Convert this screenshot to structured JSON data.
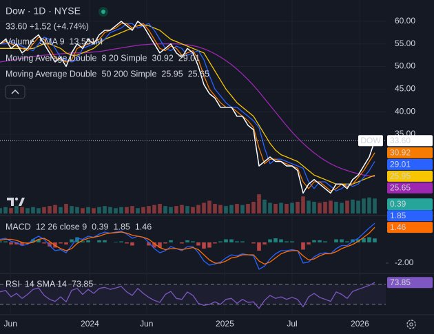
{
  "chart_data": [
    {
      "type": "line",
      "title": "Dow · 1D · NYSE",
      "subtitle": "33.60 +1.52 (+4.74%)",
      "x": [
        0,
        1,
        2,
        3,
        4,
        5,
        6,
        7,
        8,
        9,
        10,
        11,
        12,
        13,
        14,
        15,
        16,
        17,
        18,
        19,
        20,
        21,
        22,
        23,
        24,
        25,
        26,
        27,
        28,
        29,
        30,
        31,
        32,
        33,
        34,
        35,
        36,
        37,
        38,
        39,
        40,
        41,
        42,
        43,
        44,
        45,
        46,
        47,
        48,
        49,
        50,
        51,
        52,
        53,
        54,
        55,
        56,
        57,
        58,
        59,
        60,
        61,
        62,
        63,
        64,
        65,
        66,
        67,
        68
      ],
      "xlim": [
        0,
        70
      ],
      "xticks": [
        {
          "value": 1.9,
          "label": "Jun"
        },
        {
          "value": 16.3,
          "label": "2024"
        },
        {
          "value": 26.6,
          "label": "Jun"
        },
        {
          "value": 40.8,
          "label": "2025"
        },
        {
          "value": 53,
          "label": "Jul"
        },
        {
          "value": 65.3,
          "label": "2026"
        }
      ],
      "ylim": [
        17.5,
        64.7
      ],
      "yticks": [
        {
          "value": 35,
          "label": "35.00"
        },
        {
          "value": 40,
          "label": "40.00"
        },
        {
          "value": 45,
          "label": "45.00"
        },
        {
          "value": 50,
          "label": "50.00"
        },
        {
          "value": 55,
          "label": "55.00"
        },
        {
          "value": 60,
          "label": "60.00"
        }
      ],
      "y2lim": [
        0,
        200000000
      ],
      "grid": true,
      "series": [
        {
          "name": "DOW",
          "color": "#ffffff",
          "values": [
            55,
            56,
            54,
            55,
            53,
            54,
            56,
            57,
            55,
            53,
            51,
            52,
            50,
            53,
            55,
            54,
            56,
            55,
            57,
            58,
            58,
            59,
            60,
            59,
            58,
            60,
            59,
            57,
            55,
            53,
            54,
            55,
            53,
            52,
            54,
            53,
            50,
            46,
            44,
            43,
            41,
            41,
            41,
            39,
            39,
            37,
            36,
            28,
            29,
            30,
            29,
            29,
            28,
            28,
            27,
            22,
            24,
            25,
            24,
            23,
            22,
            24,
            24,
            23,
            25,
            26,
            28,
            30,
            33.6
          ],
          "value_labels": [
            null,
            null,
            null,
            null,
            null,
            null,
            null,
            null,
            null,
            null,
            null,
            null,
            null,
            null,
            null,
            null,
            null,
            null,
            null,
            null,
            null,
            null,
            null,
            null,
            null,
            null,
            null,
            null,
            null,
            null,
            null,
            null,
            null,
            null,
            null,
            null,
            null,
            null,
            null,
            null,
            null,
            null,
            null,
            null,
            null,
            null,
            null,
            null,
            null,
            null,
            null,
            null,
            null,
            null,
            null,
            null,
            null,
            null,
            null,
            null,
            null,
            null,
            null,
            null,
            null,
            null,
            null,
            null,
            "33.60"
          ]
        }
      ],
      "indicators": [
        {
          "name": "Volume",
          "params": "SMA 9",
          "value": 13531000,
          "value_label": "13.531M",
          "color": "#22ab94",
          "series": [
            {
              "type": "bar",
              "axis": "y2",
              "color": "#26a69a",
              "down_color": "#ef5350",
              "values": [
                5000000,
                6000000,
                5000000,
                7000000,
                6000000,
                5000000,
                6000000,
                5000000,
                6000000,
                7000000,
                8000000,
                6000000,
                9000000,
                7000000,
                6000000,
                5000000,
                6000000,
                5000000,
                6000000,
                7000000,
                6000000,
                5000000,
                6000000,
                6000000,
                7000000,
                5000000,
                6000000,
                7000000,
                8000000,
                9000000,
                7000000,
                6000000,
                7000000,
                8000000,
                7000000,
                6000000,
                8000000,
                10000000,
                12000000,
                9000000,
                8000000,
                7000000,
                8000000,
                9000000,
                8000000,
                9000000,
                11000000,
                18000000,
                13000000,
                10000000,
                9000000,
                10000000,
                9000000,
                10000000,
                11000000,
                16000000,
                12000000,
                11000000,
                10000000,
                11000000,
                12000000,
                11000000,
                10000000,
                12000000,
                13000000,
                12000000,
                14000000,
                15000000,
                14000000
              ]
            }
          ]
        },
        {
          "name": "Moving Average Double",
          "params": "8 20 Simple",
          "series": [
            {
              "color": "#f57c00",
              "values": [
                55,
                55.5,
                55,
                54.5,
                54,
                53.5,
                55,
                56.5,
                56,
                54,
                52,
                51.5,
                51,
                51.5,
                54,
                54.5,
                55,
                55.5,
                56,
                57.5,
                58,
                58.5,
                59.5,
                59.5,
                58.5,
                59,
                59.5,
                58,
                56,
                54,
                53.5,
                54.5,
                54,
                52.5,
                53,
                53.5,
                51.5,
                48,
                45,
                43.5,
                42,
                41,
                41,
                40,
                39,
                38,
                36.5,
                32,
                28.5,
                29.5,
                29.5,
                29,
                28.5,
                28,
                27.5,
                24.5,
                23,
                24.5,
                24.5,
                23.5,
                22.5,
                23,
                24,
                23.5,
                24,
                25.5,
                27,
                29,
                30.92
              ]
            },
            {
              "color": "#2962ff",
              "values": [
                55,
                55,
                55.5,
                55,
                54.5,
                54,
                53.5,
                55,
                56.5,
                56,
                54,
                52,
                51.5,
                51,
                51.5,
                54,
                54.5,
                55,
                55.5,
                56,
                57.5,
                58,
                58.5,
                59.5,
                59.5,
                58.5,
                59,
                59.5,
                58,
                56,
                54,
                53.5,
                54.5,
                54,
                52.5,
                53,
                53.5,
                51.5,
                48,
                45,
                43.5,
                42,
                41,
                41,
                40,
                39,
                38,
                36.5,
                32,
                28.5,
                29.5,
                29.5,
                29,
                28.5,
                28,
                27.5,
                24.5,
                23,
                24.5,
                24.5,
                23.5,
                22.5,
                23,
                24,
                23.5,
                24,
                25.5,
                27,
                29.01
              ]
            }
          ]
        },
        {
          "name": "Moving Average Double",
          "params": "50 200 Simple",
          "series": [
            {
              "color": "#f7c600",
              "values": [
                54,
                54,
                54,
                54,
                54,
                54,
                54,
                54.5,
                55,
                55,
                54.5,
                54,
                53,
                52.5,
                52.5,
                53,
                53.5,
                54,
                55,
                56,
                56.5,
                57,
                57.5,
                58,
                58.5,
                59,
                59,
                59,
                58.5,
                58,
                57,
                56,
                55.5,
                55,
                54.5,
                54,
                53.5,
                53,
                51,
                49,
                47,
                45,
                43.5,
                42,
                41,
                40,
                39,
                37,
                35,
                33,
                31.5,
                30.5,
                30,
                29.5,
                29,
                28,
                27,
                26,
                25.5,
                25,
                24.5,
                24,
                24,
                24,
                24,
                24.5,
                25,
                25.5,
                25.95
              ]
            },
            {
              "color": "#9c27b0",
              "values": [
                51,
                51.2,
                51.4,
                51.6,
                51.8,
                52,
                52.2,
                52.4,
                52.5,
                52.6,
                52.7,
                52.8,
                52.9,
                53,
                53,
                53,
                53.1,
                53.2,
                53.3,
                53.5,
                53.7,
                53.9,
                54.1,
                54.3,
                54.5,
                54.7,
                54.8,
                54.9,
                55,
                55,
                55,
                55,
                55,
                54.9,
                54.8,
                54.6,
                54.3,
                53.9,
                53.4,
                52.8,
                52.1,
                51.3,
                50.4,
                49.4,
                48.3,
                47.1,
                45.8,
                44.4,
                42.9,
                41.4,
                39.9,
                38.4,
                36.9,
                35.5,
                34.2,
                33,
                31.9,
                30.9,
                30,
                29.2,
                28.5,
                27.9,
                27.4,
                27,
                26.6,
                26.3,
                26,
                25.8,
                25.65
              ]
            }
          ]
        }
      ]
    },
    {
      "type": "line",
      "title": "MACD",
      "subtitle": "12 26 close 9",
      "ylim": [
        -2.87,
        2.47
      ],
      "yticks": [
        {
          "value": -2,
          "label": "-2.00"
        }
      ],
      "series": [
        {
          "type": "bar",
          "color": "#26a69a",
          "down_color": "#ef5350",
          "values": [
            0.1,
            0.1,
            -0.2,
            -0.2,
            -0.3,
            -0.1,
            0.3,
            0.3,
            -0.1,
            -0.4,
            -0.5,
            -0.1,
            -0.2,
            0.3,
            0.5,
            0.1,
            0.2,
            0,
            0.2,
            0.2,
            0,
            0.05,
            0.1,
            -0.1,
            -0.3,
            0,
            0,
            -0.3,
            -0.5,
            -0.5,
            -0.1,
            0.2,
            0,
            -0.1,
            0.2,
            0.1,
            -0.3,
            -0.6,
            -0.5,
            -0.1,
            0.1,
            0.3,
            0.3,
            0.1,
            0.1,
            0,
            -0.1,
            -0.8,
            -0.2,
            0.3,
            0.4,
            0.3,
            0.1,
            0.1,
            0,
            -0.7,
            -0.2,
            0.2,
            0.2,
            0.1,
            0,
            0.3,
            0.3,
            0.1,
            0.3,
            0.3,
            0.4,
            0.5,
            0.39
          ]
        },
        {
          "color": "#2962ff",
          "values": [
            0.3,
            0.4,
            0.1,
            0,
            -0.3,
            -0.2,
            0.3,
            0.6,
            0.3,
            -0.3,
            -0.8,
            -0.7,
            -1,
            -0.3,
            0.4,
            0.3,
            0.6,
            0.5,
            0.8,
            1,
            0.9,
            1,
            1.1,
            0.8,
            0.4,
            0.6,
            0.5,
            0,
            -0.6,
            -1,
            -0.8,
            -0.4,
            -0.6,
            -0.8,
            -0.4,
            -0.4,
            -1,
            -1.8,
            -2.2,
            -2.1,
            -1.9,
            -1.5,
            -1.2,
            -1.3,
            -1.1,
            -1.2,
            -1.3,
            -2.6,
            -2.3,
            -1.6,
            -1.1,
            -0.8,
            -0.8,
            -0.7,
            -0.8,
            -2,
            -1.9,
            -1.4,
            -1.1,
            -1,
            -1.1,
            -0.6,
            -0.3,
            -0.3,
            0.1,
            0.4,
            0.9,
            1.4,
            1.85
          ]
        },
        {
          "color": "#ff6d00",
          "values": [
            0.2,
            0.3,
            0.3,
            0.2,
            0,
            -0.1,
            0,
            0.3,
            0.4,
            0.1,
            -0.3,
            -0.6,
            -0.8,
            -0.6,
            -0.1,
            0.2,
            0.4,
            0.5,
            0.6,
            0.8,
            0.9,
            0.95,
            1,
            0.9,
            0.7,
            0.6,
            0.5,
            0.3,
            -0.1,
            -0.5,
            -0.7,
            -0.6,
            -0.6,
            -0.7,
            -0.6,
            -0.5,
            -0.7,
            -1.2,
            -1.7,
            -2,
            -2,
            -1.8,
            -1.5,
            -1.4,
            -1.2,
            -1.2,
            -1.2,
            -1.8,
            -2.1,
            -1.9,
            -1.5,
            -1.1,
            -0.9,
            -0.8,
            -0.8,
            -1.3,
            -1.7,
            -1.6,
            -1.3,
            -1.1,
            -1.1,
            -0.9,
            -0.6,
            -0.4,
            -0.2,
            0.1,
            0.5,
            0.9,
            1.46
          ]
        }
      ]
    },
    {
      "type": "line",
      "title": "RSI",
      "subtitle": "14 SMA 14",
      "ylim": [
        12,
        90.7
      ],
      "series": [
        {
          "color": "#7e57c2",
          "values": [
            55,
            58,
            45,
            52,
            42,
            50,
            60,
            63,
            48,
            40,
            36,
            45,
            35,
            58,
            62,
            50,
            60,
            52,
            62,
            64,
            60,
            63,
            66,
            55,
            48,
            62,
            52,
            44,
            38,
            34,
            50,
            56,
            42,
            40,
            55,
            48,
            32,
            28,
            30,
            35,
            30,
            40,
            42,
            32,
            40,
            34,
            35,
            22,
            38,
            48,
            42,
            45,
            40,
            44,
            40,
            25,
            45,
            52,
            44,
            40,
            36,
            55,
            50,
            42,
            56,
            60,
            64,
            68,
            73.85
          ]
        }
      ]
    }
  ]
}
